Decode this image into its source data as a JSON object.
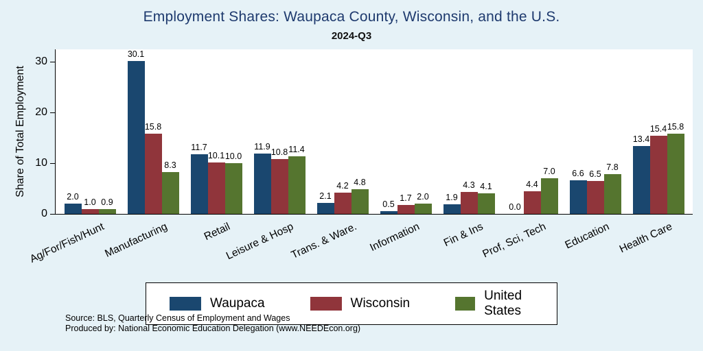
{
  "chart_data": {
    "type": "bar",
    "title": "Employment Shares: Waupaca County, Wisconsin, and the U.S.",
    "subtitle": "2024-Q3",
    "ylabel": "Share of Total Employment",
    "ylim": [
      0,
      32.4
    ],
    "yticks": [
      0,
      10,
      20,
      30
    ],
    "grid": false,
    "legend_position": "bottom",
    "categories": [
      "Ag/For/Fish/Hunt",
      "Manufacturing",
      "Retail",
      "Leisure & Hosp",
      "Trans. & Ware.",
      "Information",
      "Fin & Ins",
      "Prof, Sci, Tech",
      "Education",
      "Health Care"
    ],
    "series": [
      {
        "name": "Waupaca",
        "color": "#1a476f",
        "values": [
          2.0,
          30.1,
          11.7,
          11.9,
          2.1,
          0.5,
          1.9,
          0.0,
          6.6,
          13.4
        ]
      },
      {
        "name": "Wisconsin",
        "color": "#90353b",
        "values": [
          1.0,
          15.8,
          10.1,
          10.8,
          4.2,
          1.7,
          4.3,
          4.4,
          6.5,
          15.4
        ]
      },
      {
        "name": "United States",
        "color": "#55752f",
        "values": [
          0.9,
          8.3,
          10.0,
          11.4,
          4.8,
          2.0,
          4.1,
          7.0,
          7.8,
          15.8
        ]
      }
    ]
  },
  "footer": {
    "source": "Source: BLS, Quarterly Census of Employment and Wages",
    "produced_by": "Produced by: National Economic Education Delegation (www.NEEDEcon.org)"
  },
  "colors": {
    "background": "#e6f2f7",
    "title": "#1e3a6e",
    "plot_background": "#ffffff",
    "axis": "#000000"
  }
}
